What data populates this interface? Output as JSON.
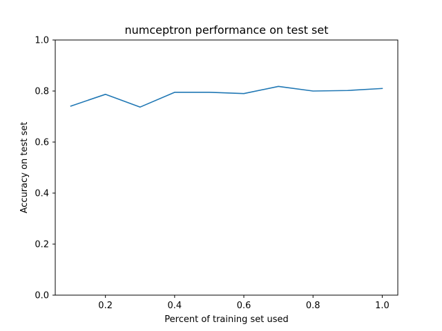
{
  "chart_data": {
    "type": "line",
    "title": "numceptron performance on test set",
    "xlabel": "Percent of training set used",
    "ylabel": "Accuracy on test set",
    "xlim": [
      0.055,
      1.045
    ],
    "ylim": [
      0.0,
      1.0
    ],
    "xticks": [
      0.2,
      0.4,
      0.6,
      0.8,
      1.0
    ],
    "xtick_labels": [
      "0.2",
      "0.4",
      "0.6",
      "0.8",
      "1.0"
    ],
    "yticks": [
      0.0,
      0.2,
      0.4,
      0.6,
      0.8,
      1.0
    ],
    "ytick_labels": [
      "0.0",
      "0.2",
      "0.4",
      "0.6",
      "0.8",
      "1.0"
    ],
    "grid": false,
    "series": [
      {
        "color": "#1f77b4",
        "x": [
          0.1,
          0.2,
          0.3,
          0.4,
          0.5,
          0.6,
          0.7,
          0.8,
          0.9,
          1.0
        ],
        "y": [
          0.741,
          0.787,
          0.737,
          0.795,
          0.795,
          0.79,
          0.818,
          0.8,
          0.802,
          0.81
        ]
      }
    ]
  }
}
